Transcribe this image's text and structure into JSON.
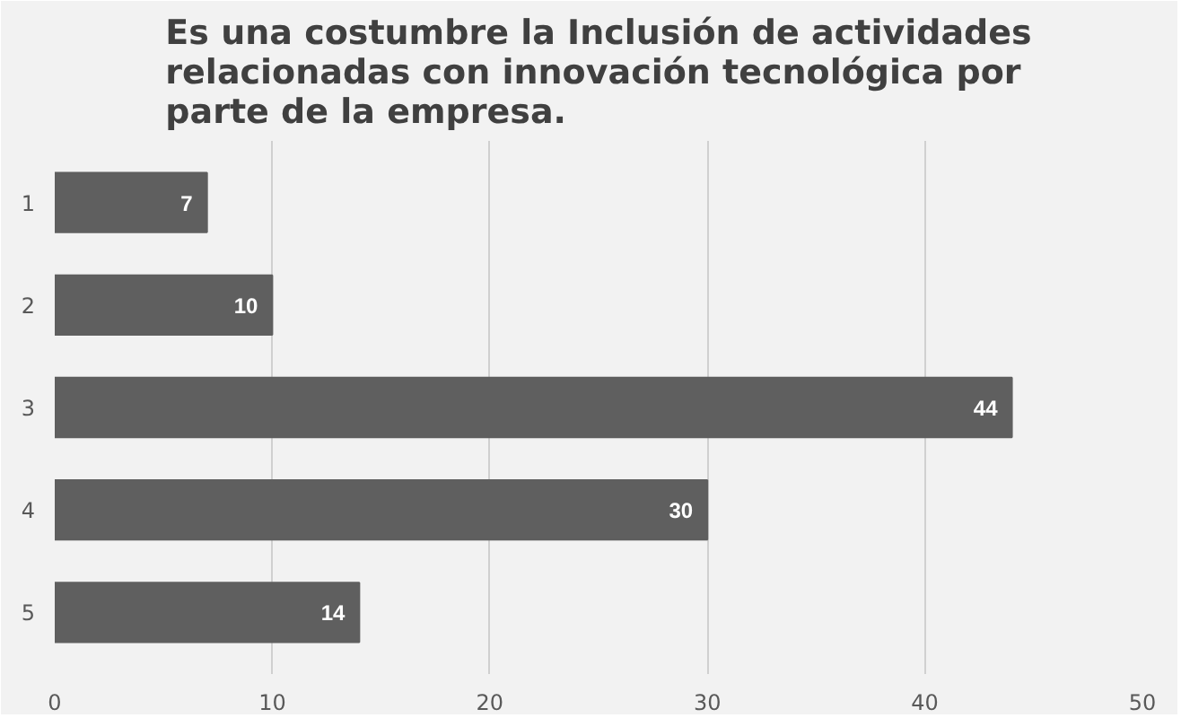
{
  "chart_data": {
    "type": "bar",
    "orientation": "horizontal",
    "title": "Es una costumbre la Inclusión de actividades relacionadas con innovación tecnológica por parte de la empresa.",
    "categories": [
      "1",
      "2",
      "3",
      "4",
      "5"
    ],
    "values": [
      7,
      10,
      44,
      30,
      14
    ],
    "color": "#5f5f5f",
    "xlim": [
      0,
      50
    ],
    "xticks": [
      0,
      10,
      20,
      30,
      40,
      50
    ],
    "grid": "x",
    "data_labels": true
  }
}
